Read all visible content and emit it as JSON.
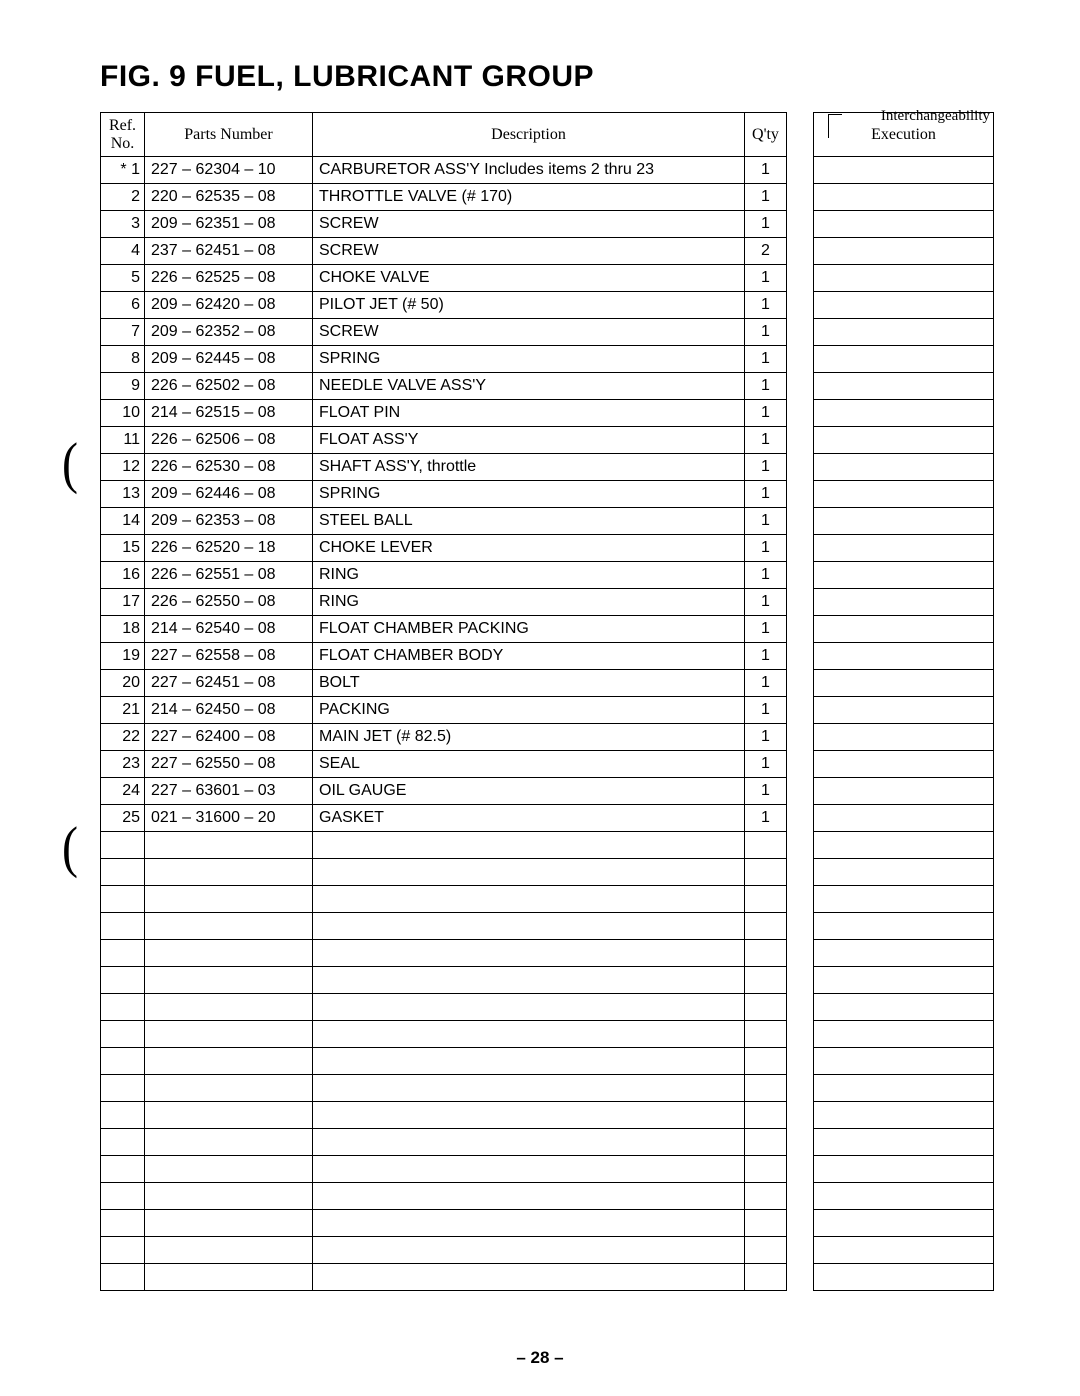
{
  "title": "FIG. 9  FUEL, LUBRICANT GROUP",
  "interchangeability_label": "Interchangeability",
  "headers": {
    "ref": "Ref.\nNo.",
    "parts": "Parts Number",
    "desc": "Description",
    "qty": "Q'ty",
    "exec": "Execution"
  },
  "rows": [
    {
      "ref": "* 1",
      "part": "227 – 62304 – 10",
      "desc": "CARBURETOR  ASS'Y        Includes  items  2  thru  23",
      "qty": "1"
    },
    {
      "ref": "2",
      "part": "220 – 62535 – 08",
      "desc": "THROTTLE  VALVE  (# 170)",
      "qty": "1"
    },
    {
      "ref": "3",
      "part": "209 – 62351 – 08",
      "desc": "SCREW",
      "qty": "1"
    },
    {
      "ref": "4",
      "part": "237 – 62451 – 08",
      "desc": "SCREW",
      "qty": "2"
    },
    {
      "ref": "5",
      "part": "226 – 62525 – 08",
      "desc": "CHOKE  VALVE",
      "qty": "1"
    },
    {
      "ref": "6",
      "part": "209 – 62420 – 08",
      "desc": "PILOT  JET  (# 50)",
      "qty": "1"
    },
    {
      "ref": "7",
      "part": "209 – 62352 – 08",
      "desc": "SCREW",
      "qty": "1"
    },
    {
      "ref": "8",
      "part": "209 – 62445 – 08",
      "desc": "SPRING",
      "qty": "1"
    },
    {
      "ref": "9",
      "part": "226 – 62502 – 08",
      "desc": "NEEDLE  VALVE  ASS'Y",
      "qty": "1"
    },
    {
      "ref": "10",
      "part": "214 – 62515 – 08",
      "desc": "FLOAT  PIN",
      "qty": "1"
    },
    {
      "ref": "11",
      "part": "226 – 62506 – 08",
      "desc": "FLOAT  ASS'Y",
      "qty": "1"
    },
    {
      "ref": "12",
      "part": "226 – 62530 – 08",
      "desc": "SHAFT  ASS'Y,  throttle",
      "qty": "1"
    },
    {
      "ref": "13",
      "part": "209 – 62446 – 08",
      "desc": "SPRING",
      "qty": "1"
    },
    {
      "ref": "14",
      "part": "209 – 62353 – 08",
      "desc": "STEEL  BALL",
      "qty": "1"
    },
    {
      "ref": "15",
      "part": "226 – 62520 – 18",
      "desc": "CHOKE  LEVER",
      "qty": "1"
    },
    {
      "ref": "16",
      "part": "226 – 62551 – 08",
      "desc": "RING",
      "qty": "1"
    },
    {
      "ref": "17",
      "part": "226 – 62550 – 08",
      "desc": "RING",
      "qty": "1"
    },
    {
      "ref": "18",
      "part": "214 – 62540 – 08",
      "desc": "FLOAT  CHAMBER  PACKING",
      "qty": "1"
    },
    {
      "ref": "19",
      "part": "227 – 62558 – 08",
      "desc": "FLOAT  CHAMBER  BODY",
      "qty": "1"
    },
    {
      "ref": "20",
      "part": "227 – 62451 – 08",
      "desc": "BOLT",
      "qty": "1"
    },
    {
      "ref": "21",
      "part": "214 – 62450 – 08",
      "desc": "PACKING",
      "qty": "1"
    },
    {
      "ref": "22",
      "part": "227 – 62400 – 08",
      "desc": "MAIN  JET  (# 82.5)",
      "qty": "1"
    },
    {
      "ref": "23",
      "part": "227 – 62550 – 08",
      "desc": "SEAL",
      "qty": "1"
    },
    {
      "ref": "24",
      "part": "227 – 63601 – 03",
      "desc": "OIL  GAUGE",
      "qty": "1"
    },
    {
      "ref": "25",
      "part": "021 – 31600 – 20",
      "desc": "GASKET",
      "qty": "1"
    }
  ],
  "empty_row_count": 17,
  "page_number": "–  28  –"
}
